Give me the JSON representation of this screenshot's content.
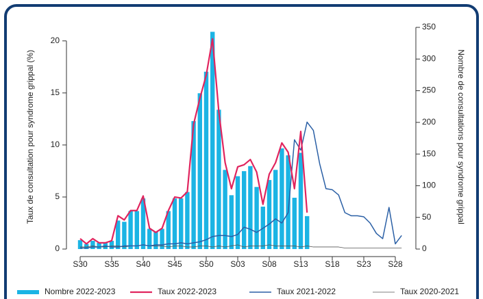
{
  "chart_data": {
    "type": "bar-line",
    "ylabel": "Taux de consultation pour syndrome grippal (%)",
    "y2label": "Nombre de consultations pour syndrome grippal",
    "categories": [
      "S30",
      null,
      null,
      null,
      null,
      "S35",
      null,
      null,
      null,
      null,
      "S40",
      null,
      null,
      null,
      null,
      "S45",
      null,
      null,
      null,
      null,
      "S50",
      null,
      null,
      null,
      null,
      "S03",
      null,
      null,
      null,
      null,
      "S08",
      null,
      null,
      null,
      null,
      "S13",
      null,
      null,
      null,
      null,
      "S18",
      null,
      null,
      null,
      null,
      "S23",
      null,
      null,
      null,
      null,
      "S28",
      null
    ],
    "ylim": [
      0,
      21.3
    ],
    "yticks": [
      0,
      5,
      10,
      15,
      20
    ],
    "y2lim": [
      0,
      350
    ],
    "y2ticks": [
      0,
      50,
      100,
      150,
      200,
      250,
      300,
      350
    ],
    "series": [
      {
        "name": "Nombre 2022-2023",
        "kind": "bar",
        "axis": "y2",
        "color": "#1bb4e4",
        "values": [
          14,
          8,
          13,
          10,
          10,
          13,
          45,
          43,
          60,
          60,
          80,
          32,
          28,
          32,
          60,
          80,
          80,
          90,
          202,
          246,
          280,
          343,
          220,
          125,
          85,
          115,
          123,
          131,
          98,
          67,
          109,
          125,
          159,
          148,
          81,
          152,
          52,
          null,
          null,
          null,
          null,
          null,
          null,
          null,
          null,
          null,
          null,
          null,
          null,
          null,
          null,
          null
        ]
      },
      {
        "name": "Taux 2022-2023",
        "kind": "line",
        "color": "#e0245e",
        "values": [
          1.0,
          0.5,
          1.0,
          0.6,
          0.6,
          0.8,
          3.2,
          2.8,
          3.7,
          3.7,
          5.1,
          2.0,
          1.6,
          2.0,
          3.7,
          5.0,
          4.9,
          5.5,
          12.0,
          14.5,
          16.7,
          20.2,
          13.2,
          8.3,
          5.8,
          7.9,
          8.1,
          8.6,
          7.4,
          4.3,
          7.2,
          8.3,
          10.2,
          9.3,
          5.8,
          11.3,
          3.5,
          null,
          null,
          null,
          null,
          null,
          null,
          null,
          null,
          null,
          null,
          null,
          null,
          null,
          null,
          null
        ]
      },
      {
        "name": "Taux 2021-2022",
        "kind": "line",
        "color": "#2a5fa5",
        "values": [
          0.1,
          0.1,
          0.2,
          0.2,
          0.3,
          0.2,
          0.2,
          0.3,
          0.3,
          0.3,
          0.4,
          0.3,
          0.4,
          0.4,
          0.5,
          0.5,
          0.6,
          0.5,
          0.6,
          0.7,
          0.9,
          1.2,
          1.3,
          1.3,
          1.2,
          1.4,
          2.1,
          1.9,
          1.6,
          2.0,
          2.4,
          2.9,
          2.5,
          3.5,
          10.5,
          9.5,
          12.2,
          11.4,
          8.2,
          5.8,
          5.7,
          5.2,
          3.5,
          3.2,
          3.2,
          3.1,
          2.5,
          1.5,
          1.0,
          4.0,
          0.5,
          1.3
        ]
      },
      {
        "name": "Taux 2020-2021",
        "kind": "line",
        "color": "#555555",
        "values": [
          0.2,
          0.2,
          0.3,
          0.2,
          0.2,
          0.3,
          0.3,
          0.2,
          0.3,
          0.3,
          0.4,
          0.3,
          0.3,
          0.3,
          0.2,
          0.3,
          0.3,
          0.2,
          0.2,
          0.3,
          0.3,
          0.2,
          0.3,
          0.2,
          0.3,
          0.4,
          0.2,
          0.3,
          0.3,
          0.3,
          0.4,
          0.3,
          0.3,
          0.3,
          0.3,
          0.2,
          0.3,
          0.2,
          0.2,
          0.2,
          0.2,
          0.2,
          0.1,
          0.1,
          0.1,
          0.1,
          0.1,
          0.1,
          0.1,
          0.1,
          0.1,
          0.1
        ]
      }
    ]
  }
}
